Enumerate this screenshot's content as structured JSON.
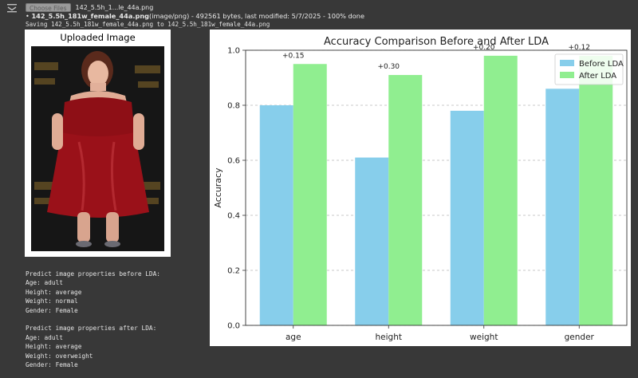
{
  "cell": {
    "icon": "cell-output-icon"
  },
  "upload": {
    "choose_button": "Choose Files",
    "file_name": "142_5.5h_1...le_44a.png"
  },
  "status": {
    "file_bold": "142_5.5h_181w_female_44a.png",
    "file_meta": "(image/png) - 492561 bytes, last modified: 5/7/2025 - 100% done",
    "saving": "Saving 142_5.5h_181w_female_44a.png to 142_5.5h_181w_female_44a.png"
  },
  "image_panel": {
    "title": "Uploaded Image"
  },
  "predictions": {
    "before_header": "Predict image properties before LDA:",
    "before": [
      {
        "key": "Age",
        "value": "adult"
      },
      {
        "key": "Height",
        "value": "average"
      },
      {
        "key": "Weight",
        "value": "normal"
      },
      {
        "key": "Gender",
        "value": "Female"
      }
    ],
    "after_header": "Predict image properties after LDA:",
    "after": [
      {
        "key": "Age",
        "value": "adult"
      },
      {
        "key": "Height",
        "value": "average"
      },
      {
        "key": "Weight",
        "value": "overweight"
      },
      {
        "key": "Gender",
        "value": "Female"
      }
    ]
  },
  "chart_data": {
    "type": "bar",
    "title": "Accuracy Comparison Before and After LDA",
    "xlabel": "",
    "ylabel": "Accuracy",
    "categories": [
      "age",
      "height",
      "weight",
      "gender"
    ],
    "series": [
      {
        "name": "Before LDA",
        "color": "#87ceeb",
        "values": [
          0.8,
          0.61,
          0.78,
          0.86
        ]
      },
      {
        "name": "After LDA",
        "color": "#90ee90",
        "values": [
          0.95,
          0.91,
          0.98,
          0.98
        ]
      }
    ],
    "annotations": [
      "+0.15",
      "+0.30",
      "+0.20",
      "+0.12"
    ],
    "ylim": [
      0,
      1.0
    ],
    "yticks": [
      "0.0",
      "0.2",
      "0.4",
      "0.6",
      "0.8",
      "1.0"
    ],
    "grid": "horizontal dashed",
    "legend": "top-right"
  }
}
